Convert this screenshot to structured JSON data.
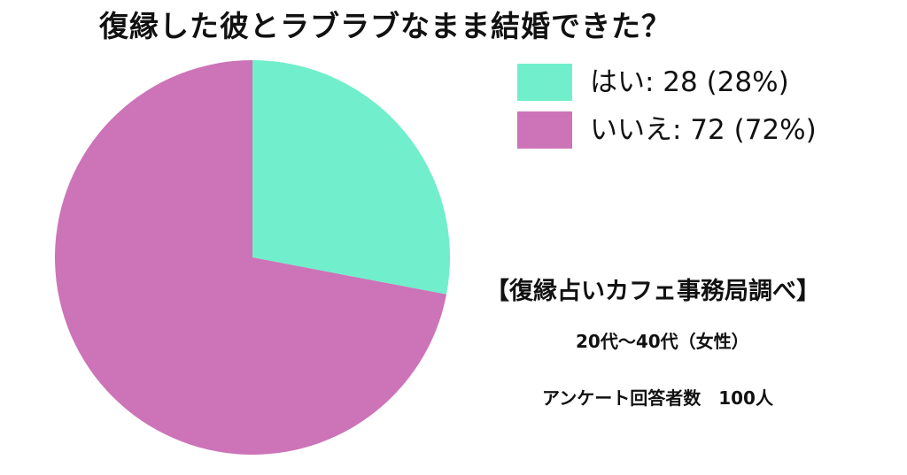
{
  "chart_data": {
    "type": "pie",
    "title": "復縁した彼とラブラブなまま結婚できた？",
    "slices": [
      {
        "label": "はい",
        "value": 28,
        "percent": "28%",
        "color": "#71eecb"
      },
      {
        "label": "いいえ",
        "value": 72,
        "percent": "72%",
        "color": "#cc74b7"
      }
    ],
    "legend_position": "top-right"
  },
  "annotations": {
    "source": "【復縁占いカフェ事務局調べ】",
    "demographic": "20代〜40代（女性）",
    "sample": "アンケート回答者数　100人"
  }
}
